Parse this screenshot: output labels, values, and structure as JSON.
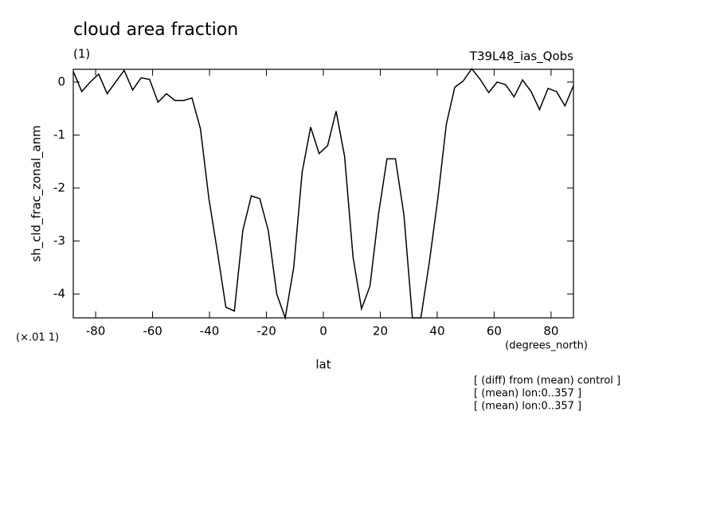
{
  "chart_data": {
    "type": "line",
    "title": "cloud area fraction",
    "subtitle": "(1)",
    "run_label": "T39L48_ias_Qobs",
    "y_label": "sh_cld_frac_zonal_anm",
    "y_scale_note": "(×.01 1)",
    "x_label": "lat",
    "x_unit": "(degrees_north)",
    "notes": [
      "[ (diff) from (mean) control ]",
      "[ (mean) lon:0..357 ]",
      "[ (mean) lon:0..357 ]"
    ],
    "xlim": [
      -87.86,
      87.86
    ],
    "ylim": [
      -4.45,
      0.24
    ],
    "xticks": [
      -80,
      -60,
      -40,
      -20,
      0,
      20,
      40,
      60,
      80
    ],
    "yticks": [
      0,
      -1,
      -2,
      -3,
      -4
    ],
    "x": [
      -87.86,
      -84.88,
      -81.9,
      -78.93,
      -75.95,
      -72.97,
      -69.99,
      -67.01,
      -64.03,
      -61.06,
      -58.08,
      -55.1,
      -52.12,
      -49.14,
      -46.16,
      -43.19,
      -40.21,
      -37.23,
      -34.25,
      -31.27,
      -28.29,
      -25.32,
      -22.34,
      -19.36,
      -16.38,
      -13.4,
      -10.42,
      -7.45,
      -4.47,
      -1.49,
      1.49,
      4.47,
      7.45,
      10.42,
      13.4,
      16.38,
      19.36,
      22.34,
      25.32,
      28.29,
      31.27,
      34.25,
      37.23,
      40.21,
      43.19,
      46.16,
      49.14,
      52.12,
      55.1,
      58.08,
      61.06,
      64.03,
      67.01,
      69.99,
      72.97,
      75.95,
      78.93,
      81.9,
      84.88,
      87.86
    ],
    "series": [
      {
        "color": "#000000",
        "values": [
          0.2,
          -0.18,
          0.0,
          0.15,
          -0.22,
          0.0,
          0.22,
          -0.15,
          0.08,
          0.05,
          -0.38,
          -0.22,
          -0.35,
          -0.35,
          -0.3,
          -0.88,
          -2.2,
          -3.2,
          -4.25,
          -4.32,
          -2.8,
          -2.15,
          -2.2,
          -2.8,
          -4.0,
          -4.45,
          -3.5,
          -1.7,
          -0.85,
          -1.35,
          -1.2,
          -0.55,
          -1.4,
          -3.3,
          -4.28,
          -3.85,
          -2.5,
          -1.45,
          -1.45,
          -2.5,
          -4.45,
          -4.45,
          -3.4,
          -2.2,
          -0.8,
          -0.1,
          0.02,
          0.25,
          0.05,
          -0.2,
          0.0,
          -0.05,
          -0.28,
          0.04,
          -0.18,
          -0.52,
          -0.12,
          -0.18,
          -0.45,
          -0.07
        ]
      }
    ]
  }
}
